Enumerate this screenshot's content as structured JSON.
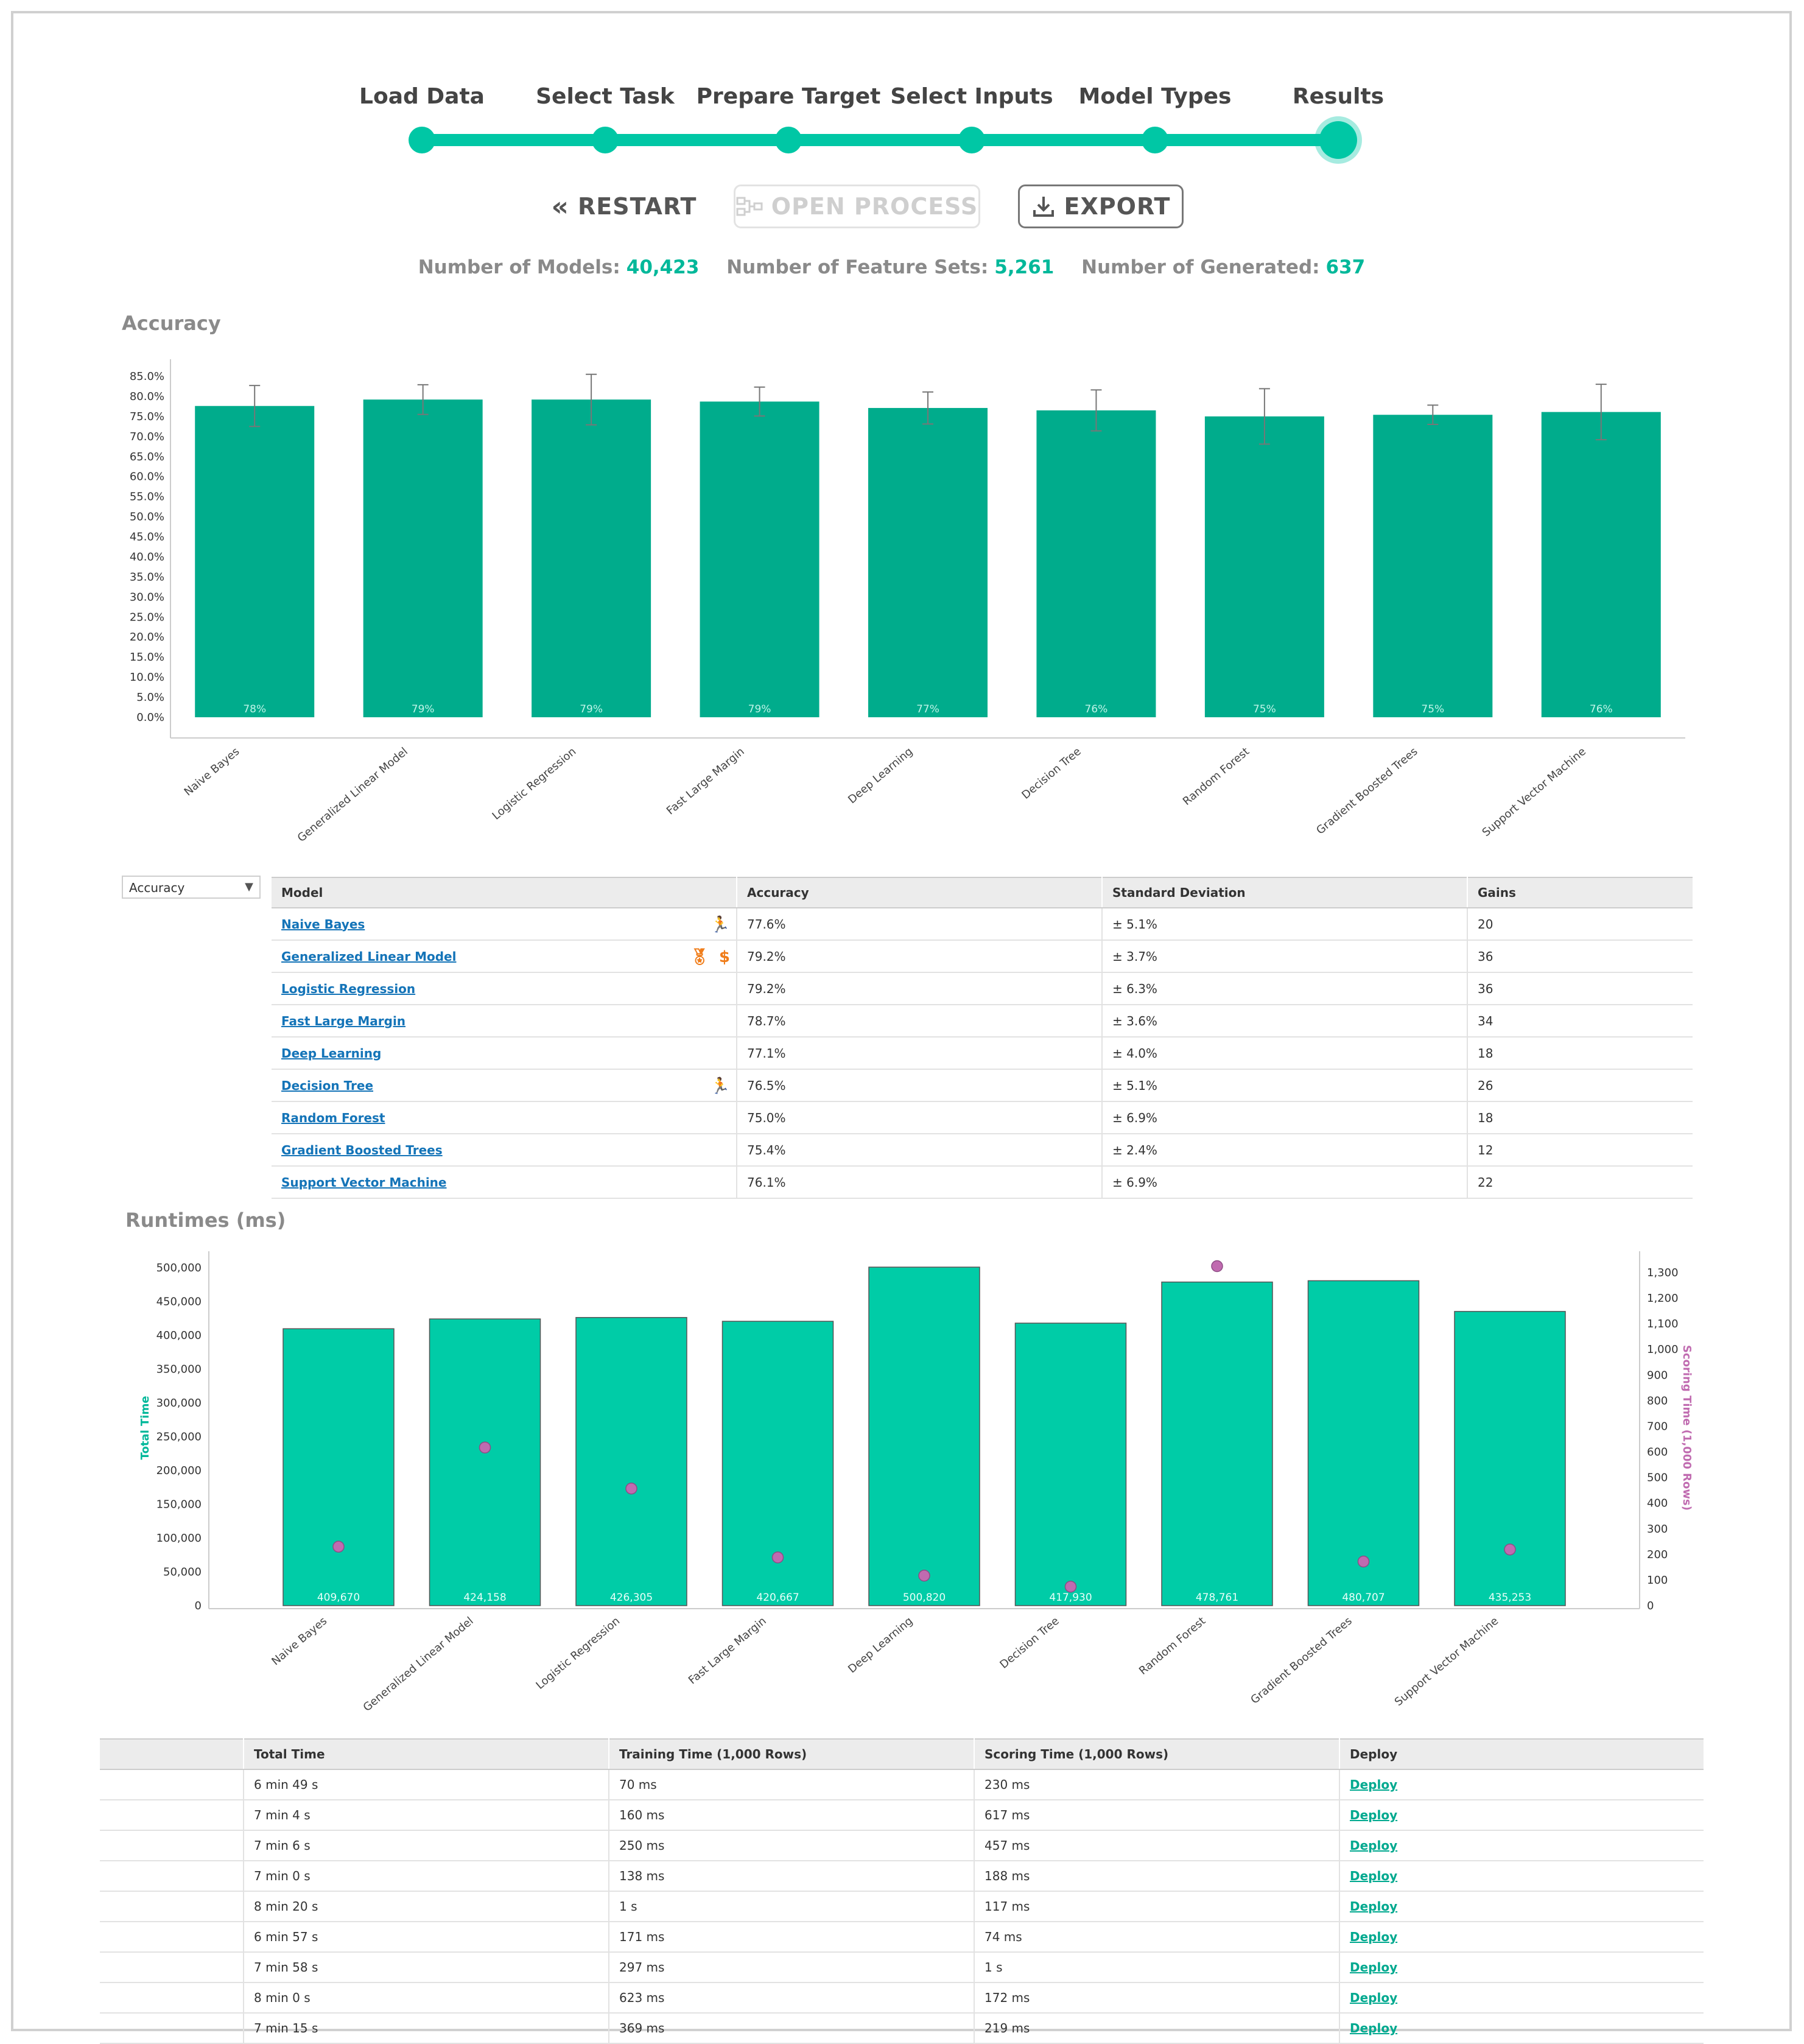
{
  "wizard": {
    "steps": [
      "Load Data",
      "Select Task",
      "Prepare Target",
      "Select Inputs",
      "Model Types",
      "Results"
    ],
    "current": "Results"
  },
  "actions": {
    "restart": "RESTART",
    "open_process": "OPEN PROCESS",
    "export": "EXPORT"
  },
  "stats": {
    "models_label": "Number of Models:",
    "models_value": "40,423",
    "feature_sets_label": "Number of Feature Sets:",
    "feature_sets_value": "5,261",
    "generated_label": "Number of Generated:",
    "generated_value": "637"
  },
  "colors": {
    "accent": "#00c7a5",
    "bar_dark": "#00ac8c",
    "bar_bright": "#00cca7",
    "scoring_dot": "#c06bb0",
    "link": "#1474b8"
  },
  "accuracy_section": {
    "title": "Accuracy"
  },
  "runtimes_section": {
    "title": "Runtimes (ms)"
  },
  "chart_data": [
    {
      "type": "bar",
      "title": "Accuracy",
      "categories": [
        "Naive Bayes",
        "Generalized Linear Model",
        "Logistic Regression",
        "Fast Large Margin",
        "Deep Learning",
        "Decision Tree",
        "Random Forest",
        "Gradient Boosted Trees",
        "Support Vector Machine"
      ],
      "values": [
        77.6,
        79.2,
        79.2,
        78.7,
        77.1,
        76.5,
        75.0,
        75.4,
        76.1
      ],
      "error": [
        5.1,
        3.7,
        6.3,
        3.6,
        4.0,
        5.1,
        6.9,
        2.4,
        6.9
      ],
      "data_labels": [
        "78%",
        "79%",
        "79%",
        "79%",
        "77%",
        "76%",
        "75%",
        "75%",
        "76%"
      ],
      "ylim": [
        0,
        85
      ],
      "y_ticks": [
        "0.0%",
        "5.0%",
        "10.0%",
        "15.0%",
        "20.0%",
        "25.0%",
        "30.0%",
        "35.0%",
        "40.0%",
        "45.0%",
        "50.0%",
        "55.0%",
        "60.0%",
        "65.0%",
        "70.0%",
        "75.0%",
        "80.0%",
        "85.0%"
      ],
      "xlabel": "",
      "ylabel": "",
      "grid": false
    },
    {
      "type": "bar",
      "title": "Runtimes (ms)",
      "categories": [
        "Naive Bayes",
        "Generalized Linear Model",
        "Logistic Regression",
        "Fast Large Margin",
        "Deep Learning",
        "Decision Tree",
        "Random Forest",
        "Gradient Boosted Trees",
        "Support Vector Machine"
      ],
      "series": [
        {
          "name": "Total Time",
          "axis": "left",
          "values": [
            409670,
            424158,
            426305,
            420667,
            500820,
            417930,
            478761,
            480707,
            435253
          ]
        },
        {
          "name": "Scoring Time (1,000 Rows)",
          "axis": "right",
          "type": "scatter",
          "values": [
            230,
            617,
            457,
            188,
            117,
            74,
            1325,
            172,
            219
          ]
        }
      ],
      "data_labels": [
        "409,670",
        "424,158",
        "426,305",
        "420,667",
        "500,820",
        "417,930",
        "478,761",
        "480,707",
        "435,253"
      ],
      "ylabel": "Total Time",
      "y2label": "Scoring Time (1,000 Rows)",
      "ylim": [
        0,
        500000
      ],
      "y2lim": [
        0,
        1300
      ],
      "y_ticks": [
        "0",
        "50,000",
        "100,000",
        "150,000",
        "200,000",
        "250,000",
        "300,000",
        "350,000",
        "400,000",
        "450,000",
        "500,000"
      ],
      "y2_ticks": [
        "0",
        "100",
        "200",
        "300",
        "400",
        "500",
        "600",
        "700",
        "800",
        "900",
        "1,000",
        "1,100",
        "1,200",
        "1,300"
      ]
    }
  ],
  "accuracy_table": {
    "dropdown": "Accuracy",
    "headers": [
      "Model",
      "Accuracy",
      "Standard Deviation",
      "Gains"
    ],
    "rows": [
      {
        "model": "Naive Bayes",
        "accuracy": "77.6%",
        "std": "± 5.1%",
        "gains": "20",
        "icons": "fastest"
      },
      {
        "model": "Generalized Linear Model",
        "accuracy": "79.2%",
        "std": "± 3.7%",
        "gains": "36",
        "icons": "best"
      },
      {
        "model": "Logistic Regression",
        "accuracy": "79.2%",
        "std": "± 6.3%",
        "gains": "36",
        "icons": ""
      },
      {
        "model": "Fast Large Margin",
        "accuracy": "78.7%",
        "std": "± 3.6%",
        "gains": "34",
        "icons": ""
      },
      {
        "model": "Deep Learning",
        "accuracy": "77.1%",
        "std": "± 4.0%",
        "gains": "18",
        "icons": ""
      },
      {
        "model": "Decision Tree",
        "accuracy": "76.5%",
        "std": "± 5.1%",
        "gains": "26",
        "icons": "fastest-scoring"
      },
      {
        "model": "Random Forest",
        "accuracy": "75.0%",
        "std": "± 6.9%",
        "gains": "18",
        "icons": ""
      },
      {
        "model": "Gradient Boosted Trees",
        "accuracy": "75.4%",
        "std": "± 2.4%",
        "gains": "12",
        "icons": ""
      },
      {
        "model": "Support Vector Machine",
        "accuracy": "76.1%",
        "std": "± 6.9%",
        "gains": "22",
        "icons": ""
      }
    ]
  },
  "runtime_table": {
    "headers": [
      "",
      "Total Time",
      "Training Time (1,000 Rows)",
      "Scoring Time (1,000 Rows)",
      "Deploy"
    ],
    "rows": [
      {
        "total": "6 min 49 s",
        "training": "70 ms",
        "scoring": "230 ms",
        "deploy": "Deploy"
      },
      {
        "total": "7 min 4 s",
        "training": "160 ms",
        "scoring": "617 ms",
        "deploy": "Deploy"
      },
      {
        "total": "7 min 6 s",
        "training": "250 ms",
        "scoring": "457 ms",
        "deploy": "Deploy"
      },
      {
        "total": "7 min 0 s",
        "training": "138 ms",
        "scoring": "188 ms",
        "deploy": "Deploy"
      },
      {
        "total": "8 min 20 s",
        "training": "1 s",
        "scoring": "117 ms",
        "deploy": "Deploy"
      },
      {
        "total": "6 min 57 s",
        "training": "171 ms",
        "scoring": "74 ms",
        "deploy": "Deploy"
      },
      {
        "total": "7 min 58 s",
        "training": "297 ms",
        "scoring": "1 s",
        "deploy": "Deploy"
      },
      {
        "total": "8 min 0 s",
        "training": "623 ms",
        "scoring": "172 ms",
        "deploy": "Deploy"
      },
      {
        "total": "7 min 15 s",
        "training": "369 ms",
        "scoring": "219 ms",
        "deploy": "Deploy"
      }
    ]
  }
}
